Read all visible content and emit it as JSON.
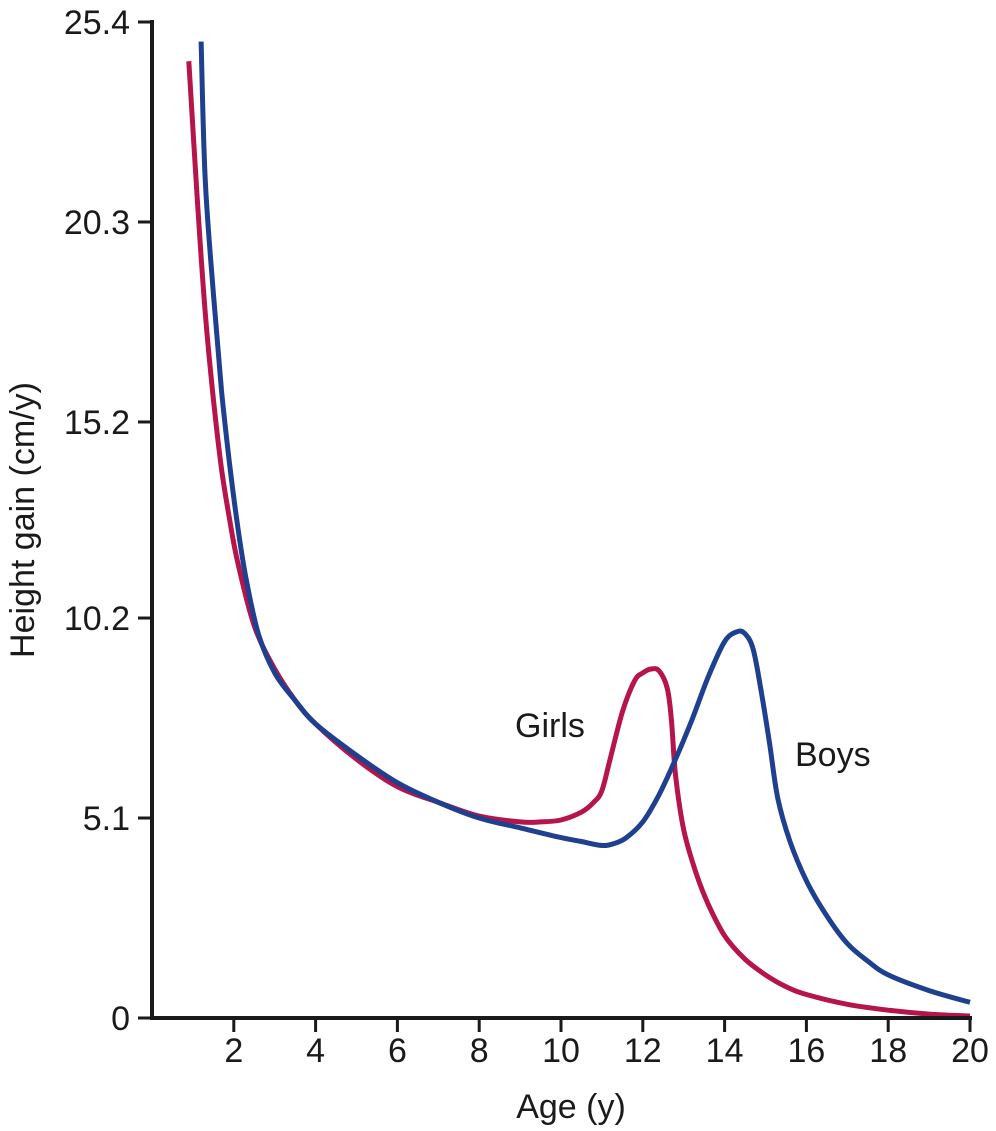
{
  "chart_data": {
    "type": "line",
    "xlabel": "Age (y)",
    "ylabel": "Height gain (cm/y)",
    "xlim": [
      0,
      20
    ],
    "ylim": [
      0,
      25.4
    ],
    "x_ticks": [
      2,
      4,
      6,
      8,
      10,
      12,
      14,
      16,
      18,
      20
    ],
    "x_tick_labels": [
      "2",
      "4",
      "6",
      "8",
      "10",
      "12",
      "14",
      "16",
      "18",
      "20"
    ],
    "y_ticks": [
      0,
      5.1,
      10.2,
      15.2,
      20.3,
      25.4
    ],
    "y_tick_labels": [
      "0",
      "5.1",
      "10.2",
      "15.2",
      "20.3",
      "25.4"
    ],
    "grid": false,
    "legend": "none",
    "series": [
      {
        "name": "Girls",
        "color": "#b5154b",
        "x": [
          0.9,
          1.1,
          1.3,
          1.5,
          1.7,
          1.9,
          2.1,
          2.5,
          3.0,
          3.5,
          4.0,
          5.0,
          6.0,
          7.0,
          8.0,
          9.0,
          9.5,
          10.0,
          10.5,
          10.8,
          11.0,
          11.2,
          11.5,
          11.8,
          12.0,
          12.2,
          12.4,
          12.6,
          12.7,
          12.8,
          13.0,
          13.3,
          13.6,
          14.0,
          14.5,
          15.0,
          15.5,
          16.0,
          17.0,
          18.0,
          19.0,
          20.0
        ],
        "y": [
          24.4,
          21.0,
          18.0,
          15.8,
          14.0,
          12.7,
          11.6,
          10.0,
          8.9,
          8.1,
          7.5,
          6.6,
          5.9,
          5.5,
          5.15,
          5.0,
          5.0,
          5.05,
          5.25,
          5.5,
          5.8,
          6.6,
          7.8,
          8.6,
          8.8,
          8.9,
          8.85,
          8.4,
          7.6,
          6.2,
          4.8,
          3.7,
          2.9,
          2.1,
          1.5,
          1.1,
          0.8,
          0.6,
          0.35,
          0.2,
          0.1,
          0.05
        ]
      },
      {
        "name": "Boys",
        "color": "#1f3f8f",
        "x": [
          1.2,
          1.3,
          1.5,
          1.7,
          1.9,
          2.1,
          2.3,
          2.6,
          3.0,
          3.5,
          4.0,
          5.0,
          6.0,
          7.0,
          8.0,
          9.0,
          10.0,
          10.5,
          11.0,
          11.3,
          11.6,
          12.0,
          12.4,
          12.8,
          13.2,
          13.6,
          14.0,
          14.3,
          14.5,
          14.7,
          14.9,
          15.1,
          15.3,
          15.6,
          16.0,
          16.5,
          17.0,
          17.5,
          18.0,
          19.0,
          20.0
        ],
        "y": [
          24.9,
          21.4,
          18.5,
          16.0,
          14.1,
          12.5,
          11.2,
          9.8,
          8.8,
          8.1,
          7.5,
          6.7,
          6.0,
          5.5,
          5.1,
          4.85,
          4.6,
          4.5,
          4.4,
          4.45,
          4.6,
          5.0,
          5.7,
          6.6,
          7.6,
          8.7,
          9.6,
          9.85,
          9.8,
          9.4,
          8.3,
          7.0,
          5.6,
          4.5,
          3.5,
          2.6,
          1.9,
          1.45,
          1.1,
          0.7,
          0.4
        ]
      }
    ]
  }
}
